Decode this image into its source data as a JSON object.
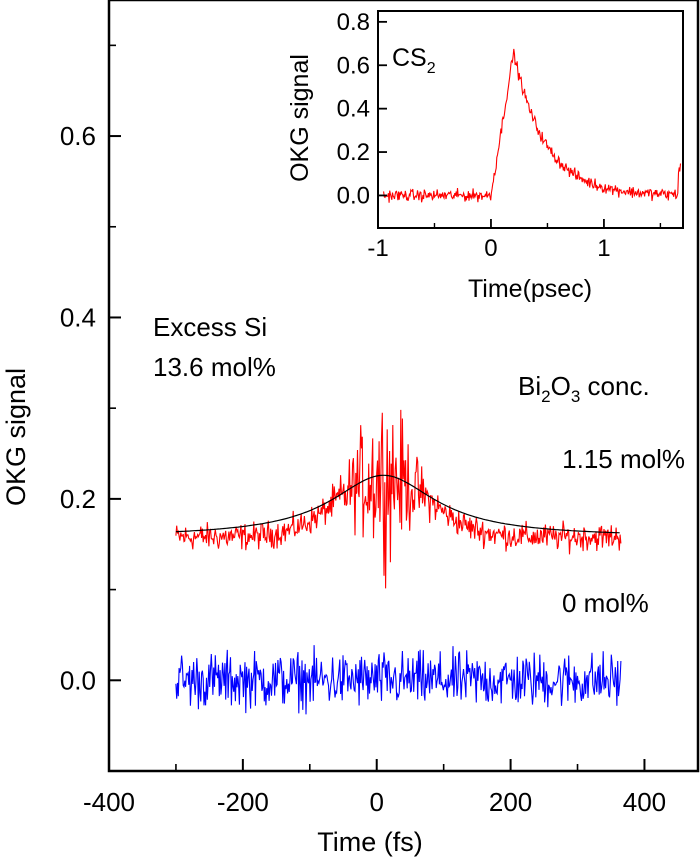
{
  "chart_data": [
    {
      "type": "line",
      "xlabel": "Time (fs)",
      "ylabel": "OKG signal",
      "xlim": [
        -400,
        480
      ],
      "ylim": [
        -0.1,
        0.75
      ],
      "xticks": [
        "-400",
        "-200",
        "0",
        "200",
        "400"
      ],
      "yticks": [
        "0.0",
        "0.2",
        "0.4",
        "0.6"
      ],
      "annotations": {
        "sample_line1": "Excess Si",
        "sample_line2": "13.6 mol%",
        "conc_prefix": "Bi",
        "conc_sub": "2",
        "conc_mid": "O",
        "conc_sub2": "3",
        "conc_suffix": " conc.",
        "label_high": "1.15 mol%",
        "label_zero": "0 mol%"
      },
      "series": [
        {
          "name": "1.15 mol%",
          "color": "#ff0000",
          "x_range": [
            -300,
            365
          ],
          "baseline": 0.158,
          "peak_center": 10,
          "peak_height": 0.068,
          "noise_base": 0.022,
          "noise_peak": 0.11
        },
        {
          "name": "0 mol%",
          "color": "#0000ff",
          "x_range": [
            -300,
            365
          ],
          "baseline": 0.0,
          "noise_base": 0.045
        },
        {
          "name": "fit",
          "color": "#000000",
          "x_range": [
            -300,
            365
          ],
          "baseline": 0.158,
          "peak_center": 10,
          "peak_height": 0.068,
          "width": 95
        }
      ]
    },
    {
      "type": "line",
      "title_main": "CS",
      "title_sub": "2",
      "xlabel": "Time(psec)",
      "ylabel": "OKG signal",
      "xlim": [
        -1,
        1.7
      ],
      "ylim": [
        -0.15,
        0.85
      ],
      "xticks": [
        "-1",
        "0",
        "1"
      ],
      "yticks": [
        "0.0",
        "0.2",
        "0.4",
        "0.6",
        "0.8"
      ],
      "series": [
        {
          "name": "CS2",
          "color": "#ff0000",
          "x_range": [
            -0.95,
            1.68
          ],
          "peak_center": 0.2,
          "peak_height": 0.66,
          "noise": 0.04
        }
      ]
    }
  ]
}
